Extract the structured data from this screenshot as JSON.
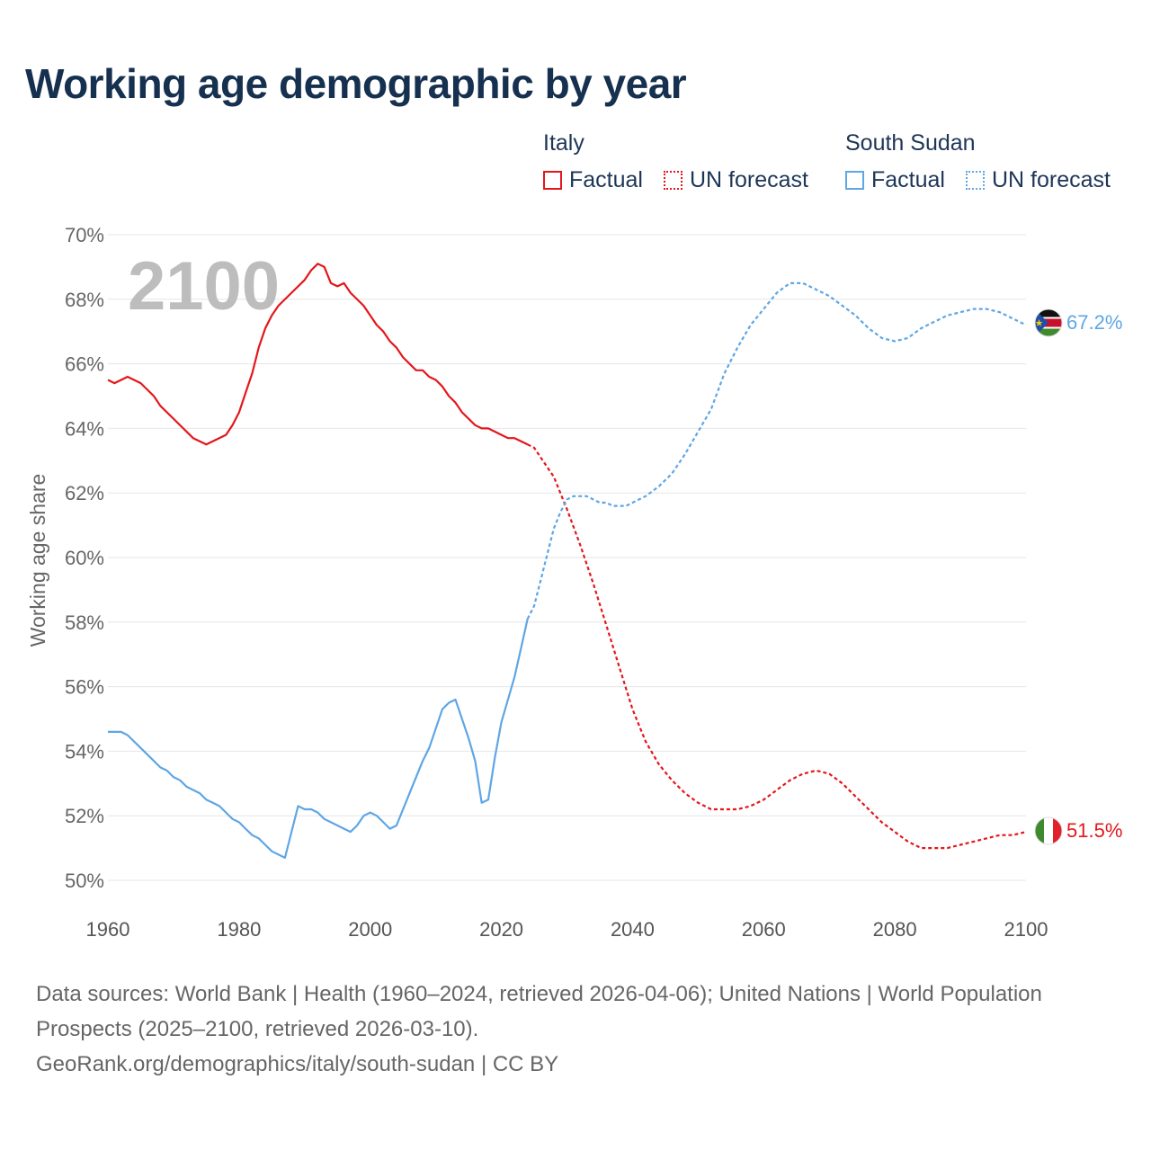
{
  "title": "Working age demographic by year",
  "legend": {
    "groups": [
      {
        "name": "Italy",
        "color": "#e3171b",
        "items": [
          {
            "label": "Factual",
            "style": "solid"
          },
          {
            "label": "UN forecast",
            "style": "dotted"
          }
        ]
      },
      {
        "name": "South Sudan",
        "color": "#5ea6e4",
        "items": [
          {
            "label": "Factual",
            "style": "solid"
          },
          {
            "label": "UN forecast",
            "style": "dotted"
          }
        ]
      }
    ]
  },
  "year_overlay": "2100",
  "footer": {
    "sources": "Data sources: World Bank | Health (1960–2024, retrieved 2026-04-06); United Nations | World Population Prospects (2025–2100, retrieved 2026-03-10).",
    "attribution": "GeoRank.org/demographics/italy/south-sudan | CC BY"
  },
  "chart_data": {
    "type": "line",
    "ylabel": "Working age share",
    "xlabel": "",
    "xlim": [
      1960,
      2100
    ],
    "ylim": [
      50,
      70
    ],
    "x_ticks": [
      1960,
      1980,
      2000,
      2020,
      2040,
      2060,
      2080,
      2100
    ],
    "y_ticks": [
      50,
      52,
      54,
      56,
      58,
      60,
      62,
      64,
      66,
      68,
      70
    ],
    "y_tick_format": "{v}%",
    "grid": true,
    "forecast_start": 2024,
    "series": [
      {
        "name": "Italy",
        "color": "#e3171b",
        "end_label": "51.5%",
        "flag": "italy-flag",
        "points": [
          [
            1960,
            65.5
          ],
          [
            1961,
            65.4
          ],
          [
            1963,
            65.6
          ],
          [
            1965,
            65.4
          ],
          [
            1967,
            65.0
          ],
          [
            1968,
            64.7
          ],
          [
            1970,
            64.3
          ],
          [
            1973,
            63.7
          ],
          [
            1975,
            63.5
          ],
          [
            1978,
            63.8
          ],
          [
            1979,
            64.1
          ],
          [
            1980,
            64.5
          ],
          [
            1981,
            65.1
          ],
          [
            1982,
            65.7
          ],
          [
            1983,
            66.5
          ],
          [
            1984,
            67.1
          ],
          [
            1985,
            67.5
          ],
          [
            1986,
            67.8
          ],
          [
            1988,
            68.2
          ],
          [
            1990,
            68.6
          ],
          [
            1991,
            68.9
          ],
          [
            1992,
            69.1
          ],
          [
            1993,
            69.0
          ],
          [
            1994,
            68.5
          ],
          [
            1995,
            68.4
          ],
          [
            1996,
            68.5
          ],
          [
            1997,
            68.2
          ],
          [
            1999,
            67.8
          ],
          [
            2000,
            67.5
          ],
          [
            2001,
            67.2
          ],
          [
            2002,
            67.0
          ],
          [
            2003,
            66.7
          ],
          [
            2004,
            66.5
          ],
          [
            2005,
            66.2
          ],
          [
            2007,
            65.8
          ],
          [
            2008,
            65.8
          ],
          [
            2009,
            65.6
          ],
          [
            2010,
            65.5
          ],
          [
            2011,
            65.3
          ],
          [
            2012,
            65.0
          ],
          [
            2013,
            64.8
          ],
          [
            2014,
            64.5
          ],
          [
            2016,
            64.1
          ],
          [
            2017,
            64.0
          ],
          [
            2018,
            64.0
          ],
          [
            2020,
            63.8
          ],
          [
            2021,
            63.7
          ],
          [
            2022,
            63.7
          ],
          [
            2024,
            63.5
          ],
          [
            2025,
            63.4
          ],
          [
            2026,
            63.1
          ],
          [
            2028,
            62.5
          ],
          [
            2030,
            61.5
          ],
          [
            2032,
            60.4
          ],
          [
            2034,
            59.2
          ],
          [
            2036,
            57.9
          ],
          [
            2038,
            56.6
          ],
          [
            2040,
            55.3
          ],
          [
            2042,
            54.3
          ],
          [
            2044,
            53.6
          ],
          [
            2046,
            53.1
          ],
          [
            2048,
            52.7
          ],
          [
            2050,
            52.4
          ],
          [
            2052,
            52.2
          ],
          [
            2056,
            52.2
          ],
          [
            2058,
            52.3
          ],
          [
            2060,
            52.5
          ],
          [
            2062,
            52.8
          ],
          [
            2064,
            53.1
          ],
          [
            2066,
            53.3
          ],
          [
            2068,
            53.4
          ],
          [
            2070,
            53.3
          ],
          [
            2072,
            53.0
          ],
          [
            2074,
            52.6
          ],
          [
            2076,
            52.2
          ],
          [
            2078,
            51.8
          ],
          [
            2080,
            51.5
          ],
          [
            2082,
            51.2
          ],
          [
            2084,
            51.0
          ],
          [
            2088,
            51.0
          ],
          [
            2090,
            51.1
          ],
          [
            2092,
            51.2
          ],
          [
            2094,
            51.3
          ],
          [
            2096,
            51.4
          ],
          [
            2098,
            51.4
          ],
          [
            2100,
            51.5
          ]
        ]
      },
      {
        "name": "South Sudan",
        "color": "#5ea6e4",
        "end_label": "67.2%",
        "flag": "south-sudan-flag",
        "points": [
          [
            1960,
            54.6
          ],
          [
            1962,
            54.6
          ],
          [
            1963,
            54.5
          ],
          [
            1965,
            54.1
          ],
          [
            1967,
            53.7
          ],
          [
            1968,
            53.5
          ],
          [
            1969,
            53.4
          ],
          [
            1970,
            53.2
          ],
          [
            1971,
            53.1
          ],
          [
            1972,
            52.9
          ],
          [
            1973,
            52.8
          ],
          [
            1974,
            52.7
          ],
          [
            1975,
            52.5
          ],
          [
            1976,
            52.4
          ],
          [
            1977,
            52.3
          ],
          [
            1978,
            52.1
          ],
          [
            1979,
            51.9
          ],
          [
            1980,
            51.8
          ],
          [
            1981,
            51.6
          ],
          [
            1982,
            51.4
          ],
          [
            1983,
            51.3
          ],
          [
            1984,
            51.1
          ],
          [
            1985,
            50.9
          ],
          [
            1986,
            50.8
          ],
          [
            1987,
            50.7
          ],
          [
            1988,
            51.5
          ],
          [
            1989,
            52.3
          ],
          [
            1990,
            52.2
          ],
          [
            1991,
            52.2
          ],
          [
            1992,
            52.1
          ],
          [
            1993,
            51.9
          ],
          [
            1994,
            51.8
          ],
          [
            1995,
            51.7
          ],
          [
            1996,
            51.6
          ],
          [
            1997,
            51.5
          ],
          [
            1998,
            51.7
          ],
          [
            1999,
            52.0
          ],
          [
            2000,
            52.1
          ],
          [
            2001,
            52.0
          ],
          [
            2002,
            51.8
          ],
          [
            2003,
            51.6
          ],
          [
            2004,
            51.7
          ],
          [
            2005,
            52.2
          ],
          [
            2006,
            52.7
          ],
          [
            2007,
            53.2
          ],
          [
            2008,
            53.7
          ],
          [
            2009,
            54.1
          ],
          [
            2010,
            54.7
          ],
          [
            2011,
            55.3
          ],
          [
            2012,
            55.5
          ],
          [
            2013,
            55.6
          ],
          [
            2014,
            55.0
          ],
          [
            2015,
            54.4
          ],
          [
            2016,
            53.7
          ],
          [
            2017,
            52.4
          ],
          [
            2018,
            52.5
          ],
          [
            2019,
            53.8
          ],
          [
            2020,
            54.9
          ],
          [
            2021,
            55.6
          ],
          [
            2022,
            56.3
          ],
          [
            2023,
            57.2
          ],
          [
            2024,
            58.1
          ],
          [
            2025,
            58.5
          ],
          [
            2026,
            59.3
          ],
          [
            2027,
            60.1
          ],
          [
            2028,
            60.9
          ],
          [
            2029,
            61.4
          ],
          [
            2030,
            61.8
          ],
          [
            2031,
            61.9
          ],
          [
            2033,
            61.9
          ],
          [
            2035,
            61.7
          ],
          [
            2036,
            61.7
          ],
          [
            2037,
            61.6
          ],
          [
            2039,
            61.6
          ],
          [
            2041,
            61.8
          ],
          [
            2042,
            61.9
          ],
          [
            2044,
            62.2
          ],
          [
            2046,
            62.6
          ],
          [
            2048,
            63.2
          ],
          [
            2050,
            63.9
          ],
          [
            2052,
            64.6
          ],
          [
            2054,
            65.7
          ],
          [
            2056,
            66.5
          ],
          [
            2058,
            67.2
          ],
          [
            2060,
            67.7
          ],
          [
            2062,
            68.2
          ],
          [
            2064,
            68.5
          ],
          [
            2066,
            68.5
          ],
          [
            2068,
            68.3
          ],
          [
            2070,
            68.1
          ],
          [
            2072,
            67.8
          ],
          [
            2074,
            67.5
          ],
          [
            2076,
            67.1
          ],
          [
            2078,
            66.8
          ],
          [
            2080,
            66.7
          ],
          [
            2082,
            66.8
          ],
          [
            2084,
            67.1
          ],
          [
            2086,
            67.3
          ],
          [
            2088,
            67.5
          ],
          [
            2090,
            67.6
          ],
          [
            2092,
            67.7
          ],
          [
            2094,
            67.7
          ],
          [
            2096,
            67.6
          ],
          [
            2098,
            67.4
          ],
          [
            2100,
            67.2
          ]
        ]
      }
    ]
  }
}
